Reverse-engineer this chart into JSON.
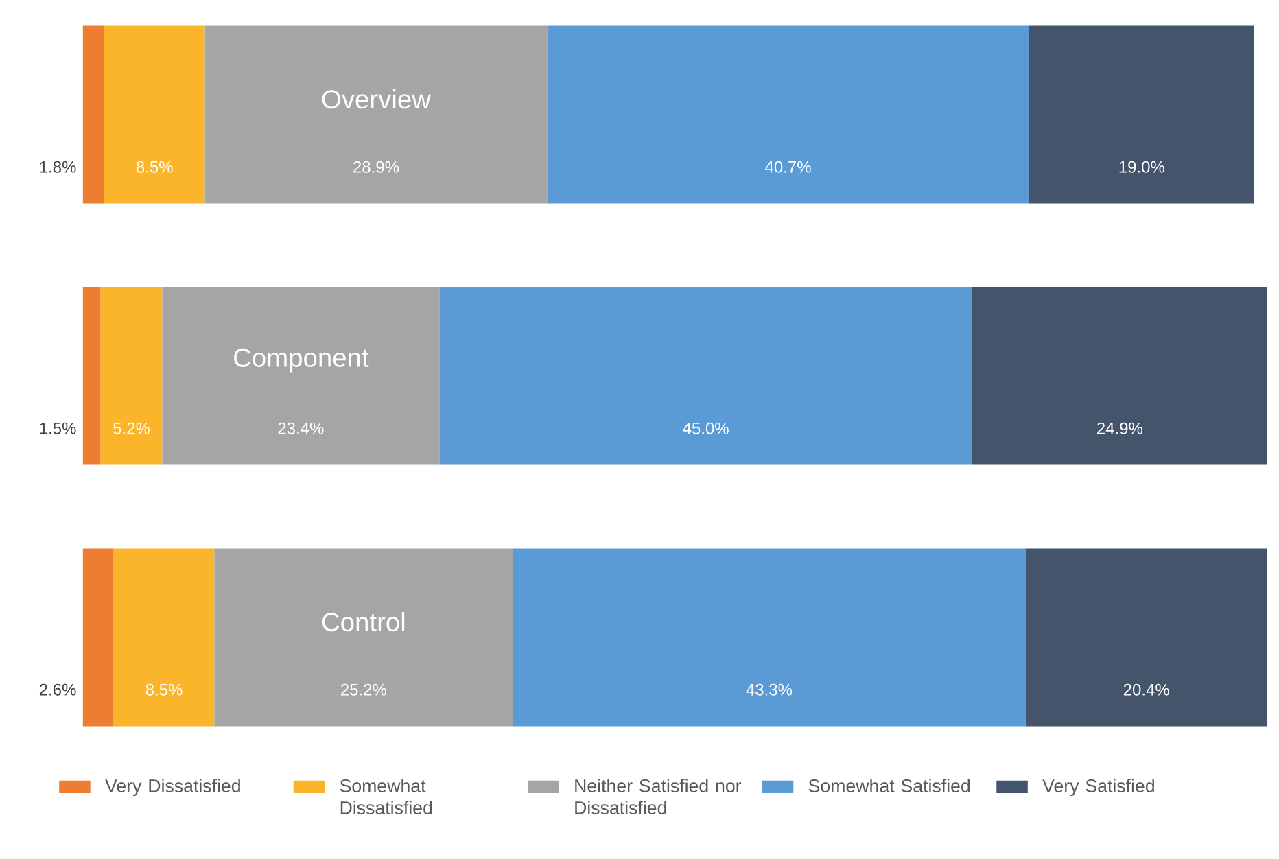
{
  "chart_data": {
    "type": "bar",
    "orientation": "horizontal",
    "stacked": true,
    "legend": "bottom",
    "categories": [
      "Overview",
      "Component",
      "Control"
    ],
    "series": [
      {
        "name": "Very Dissatisfied",
        "color": "#ed7d31",
        "values": [
          1.8,
          1.5,
          2.6
        ],
        "value_labels": [
          "1.8%",
          "1.5%",
          "2.6%"
        ]
      },
      {
        "name": "Somewhat Dissatisfied",
        "color": "#fbb52b",
        "values": [
          8.5,
          5.2,
          8.5
        ],
        "value_labels": [
          "8.5%",
          "5.2%",
          "8.5%"
        ]
      },
      {
        "name": "Neither Satisfied nor Dissatisfied",
        "color": "#a5a5a5",
        "values": [
          28.9,
          23.4,
          25.2
        ],
        "value_labels": [
          "28.9%",
          "23.4%",
          "25.2%"
        ]
      },
      {
        "name": "Somewhat Satisfied",
        "color": "#5b9bd5",
        "values": [
          40.7,
          45.0,
          43.3
        ],
        "value_labels": [
          "40.7%",
          "45.0%",
          "43.3%"
        ]
      },
      {
        "name": "Very Satisfied",
        "color": "#44546a",
        "values": [
          19.0,
          24.9,
          20.4
        ],
        "value_labels": [
          "19.0%",
          "24.9%",
          "20.4%"
        ]
      }
    ]
  }
}
